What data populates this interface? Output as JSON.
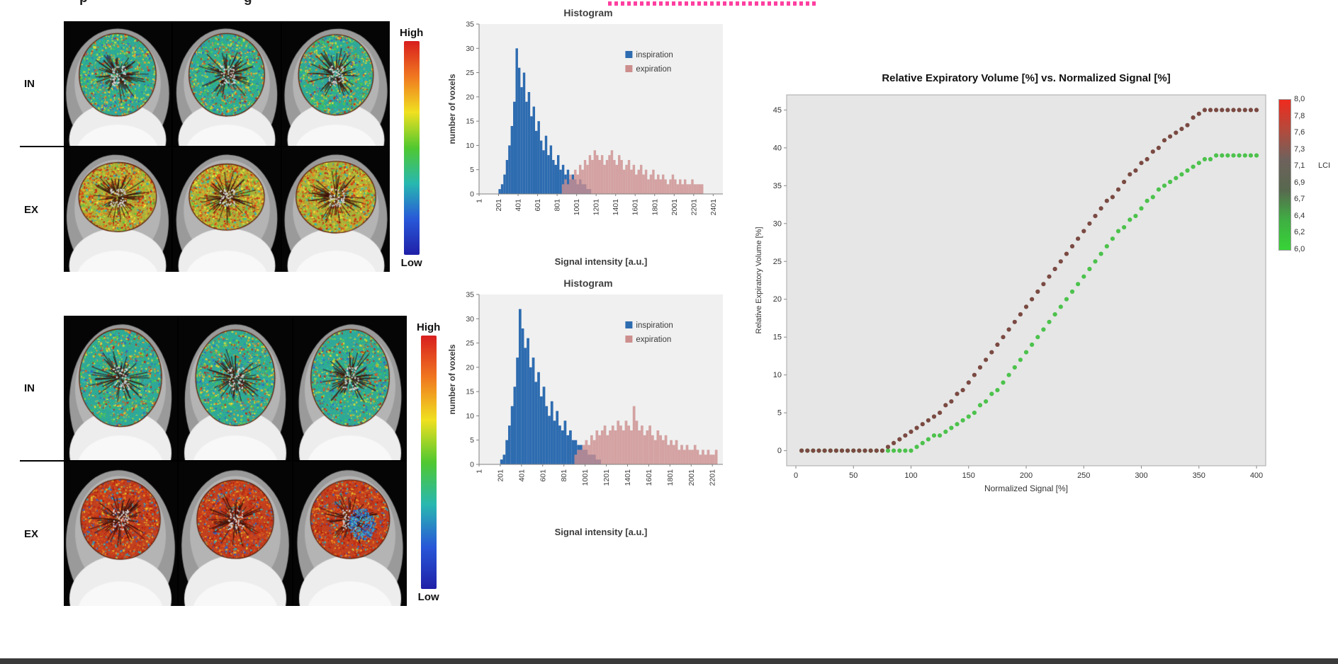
{
  "header": {
    "left_fragments": [
      "p",
      "g"
    ],
    "redacted_color": "#ff3fa0"
  },
  "mri_panel": {
    "blocks": [
      {
        "rows": [
          {
            "label": "IN"
          },
          {
            "label": "EX"
          }
        ],
        "colorbar": {
          "high": "High",
          "low": "Low"
        }
      },
      {
        "rows": [
          {
            "label": "IN"
          },
          {
            "label": "EX"
          }
        ],
        "colorbar": {
          "high": "High",
          "low": "Low"
        }
      }
    ],
    "colormap": [
      "#d81e1e",
      "#f07820",
      "#f0e020",
      "#50c830",
      "#28b8b0",
      "#2858d8",
      "#2020a8"
    ]
  },
  "chart_data": [
    {
      "type": "bar",
      "title": "Histogram",
      "xlabel": "Signal intensity [a.u.]",
      "ylabel": "number of voxels",
      "ylim": [
        0,
        35
      ],
      "xlim": [
        1,
        2500
      ],
      "y_ticks": [
        0,
        5,
        10,
        15,
        20,
        25,
        30,
        35
      ],
      "x_ticks": [
        1,
        201,
        401,
        601,
        801,
        1001,
        1201,
        1401,
        1601,
        1801,
        2001,
        2201,
        2401
      ],
      "bin_width": 25,
      "legend_position": "inside-right",
      "series": [
        {
          "name": "inspiration",
          "color": "#2e6cb0",
          "opacity": 1,
          "x_start": 200,
          "values": [
            1,
            2,
            4,
            7,
            10,
            14,
            19,
            30,
            26,
            22,
            25,
            19,
            21,
            16,
            18,
            13,
            15,
            11,
            9,
            12,
            8,
            10,
            7,
            6,
            8,
            5,
            6,
            4,
            5,
            3,
            4,
            3,
            2,
            3,
            2,
            2,
            1,
            1
          ]
        },
        {
          "name": "expiration",
          "color": "#cd8e8e",
          "opacity": 0.8,
          "x_start": 850,
          "values": [
            2,
            3,
            2,
            4,
            3,
            5,
            4,
            6,
            5,
            7,
            6,
            8,
            7,
            9,
            8,
            7,
            8,
            6,
            7,
            8,
            9,
            7,
            6,
            8,
            7,
            5,
            6,
            7,
            5,
            6,
            4,
            5,
            6,
            4,
            5,
            3,
            4,
            5,
            3,
            4,
            3,
            4,
            3,
            2,
            3,
            4,
            3,
            2,
            3,
            2,
            3,
            2,
            2,
            3,
            2,
            2,
            2,
            2
          ]
        }
      ]
    },
    {
      "type": "bar",
      "title": "Histogram",
      "xlabel": "Signal intensity [a.u.]",
      "ylabel": "number of voxels",
      "ylim": [
        0,
        35
      ],
      "xlim": [
        1,
        2300
      ],
      "y_ticks": [
        0,
        5,
        10,
        15,
        20,
        25,
        30,
        35
      ],
      "x_ticks": [
        1,
        201,
        401,
        601,
        801,
        1001,
        1201,
        1401,
        1601,
        1801,
        2001,
        2201
      ],
      "bin_width": 25,
      "legend_position": "inside-right",
      "series": [
        {
          "name": "inspiration",
          "color": "#2e6cb0",
          "opacity": 1,
          "x_start": 200,
          "values": [
            1,
            2,
            5,
            8,
            12,
            16,
            22,
            32,
            28,
            24,
            26,
            20,
            22,
            17,
            19,
            14,
            16,
            12,
            10,
            13,
            9,
            11,
            8,
            7,
            9,
            6,
            7,
            5,
            5,
            4,
            4,
            3,
            3,
            2,
            2,
            2,
            1,
            1
          ]
        },
        {
          "name": "expiration",
          "color": "#cd8e8e",
          "opacity": 0.8,
          "x_start": 900,
          "values": [
            2,
            3,
            3,
            4,
            5,
            4,
            6,
            5,
            7,
            6,
            7,
            8,
            6,
            7,
            8,
            7,
            9,
            8,
            7,
            9,
            8,
            7,
            12,
            9,
            7,
            8,
            6,
            7,
            8,
            6,
            5,
            7,
            6,
            5,
            6,
            4,
            5,
            4,
            5,
            3,
            4,
            3,
            4,
            3,
            3,
            4,
            3,
            2,
            3,
            2,
            3,
            2,
            2,
            3
          ]
        }
      ]
    },
    {
      "type": "scatter",
      "title": "Relative Expiratory Volume [%] vs. Normalized Signal [%]",
      "xlabel": "Normalized Signal [%]",
      "ylabel": "Relative Expiratory Volume [%]",
      "xlim": [
        0,
        400
      ],
      "ylim": [
        0,
        45
      ],
      "x_ticks": [
        0,
        50,
        100,
        150,
        200,
        250,
        300,
        350,
        400
      ],
      "y_ticks": [
        0,
        5,
        10,
        15,
        20,
        25,
        30,
        35,
        40,
        45
      ],
      "series": [
        {
          "name": "LCI 8,0",
          "color": "#7a4a42",
          "x_start": 5,
          "x_step": 5,
          "y": [
            0,
            0,
            0,
            0,
            0,
            0,
            0,
            0,
            0,
            0,
            0,
            0,
            0,
            0,
            0,
            0.5,
            1,
            1.5,
            2,
            2.5,
            3,
            3.5,
            4,
            4.5,
            5,
            6,
            6.5,
            7.5,
            8,
            9,
            10,
            11,
            12,
            13,
            14,
            15,
            16,
            17,
            18,
            19,
            20,
            21,
            22,
            23,
            24,
            25,
            26,
            27,
            28,
            29,
            30,
            31,
            32,
            33,
            33.5,
            34.5,
            35.5,
            36.5,
            37,
            38,
            38.5,
            39.5,
            40,
            41,
            41.5,
            42,
            42.5,
            43,
            44,
            44.5,
            45,
            45,
            45,
            45,
            45,
            45,
            45,
            45,
            45,
            45
          ]
        },
        {
          "name": "LCI 6,0",
          "color": "#4cc24c",
          "x_start": 5,
          "x_step": 5,
          "y": [
            0,
            0,
            0,
            0,
            0,
            0,
            0,
            0,
            0,
            0,
            0,
            0,
            0,
            0,
            0,
            0,
            0,
            0,
            0,
            0,
            0.5,
            1,
            1.5,
            2,
            2,
            2.5,
            3,
            3.5,
            4,
            4.5,
            5,
            6,
            6.5,
            7.5,
            8,
            9,
            10,
            11,
            12,
            13,
            14,
            15,
            16,
            17,
            18,
            19,
            20,
            21,
            22,
            23,
            24,
            25,
            26,
            27,
            28,
            29,
            29.5,
            30.5,
            31,
            32,
            33,
            33.5,
            34.5,
            35,
            35.5,
            36,
            36.5,
            37,
            37.5,
            38,
            38.5,
            38.5,
            39,
            39,
            39,
            39,
            39,
            39,
            39,
            39
          ]
        }
      ],
      "colorbar": {
        "label": "LCI",
        "tick_labels": [
          "8,0",
          "7,8",
          "7,6",
          "7,3",
          "7,1",
          "6,9",
          "6,7",
          "6,4",
          "6,2",
          "6,0"
        ],
        "colors": [
          "#ef2b1e",
          "#b44a3c",
          "#6e625c",
          "#58684f",
          "#3fae43",
          "#37d437"
        ]
      }
    }
  ]
}
